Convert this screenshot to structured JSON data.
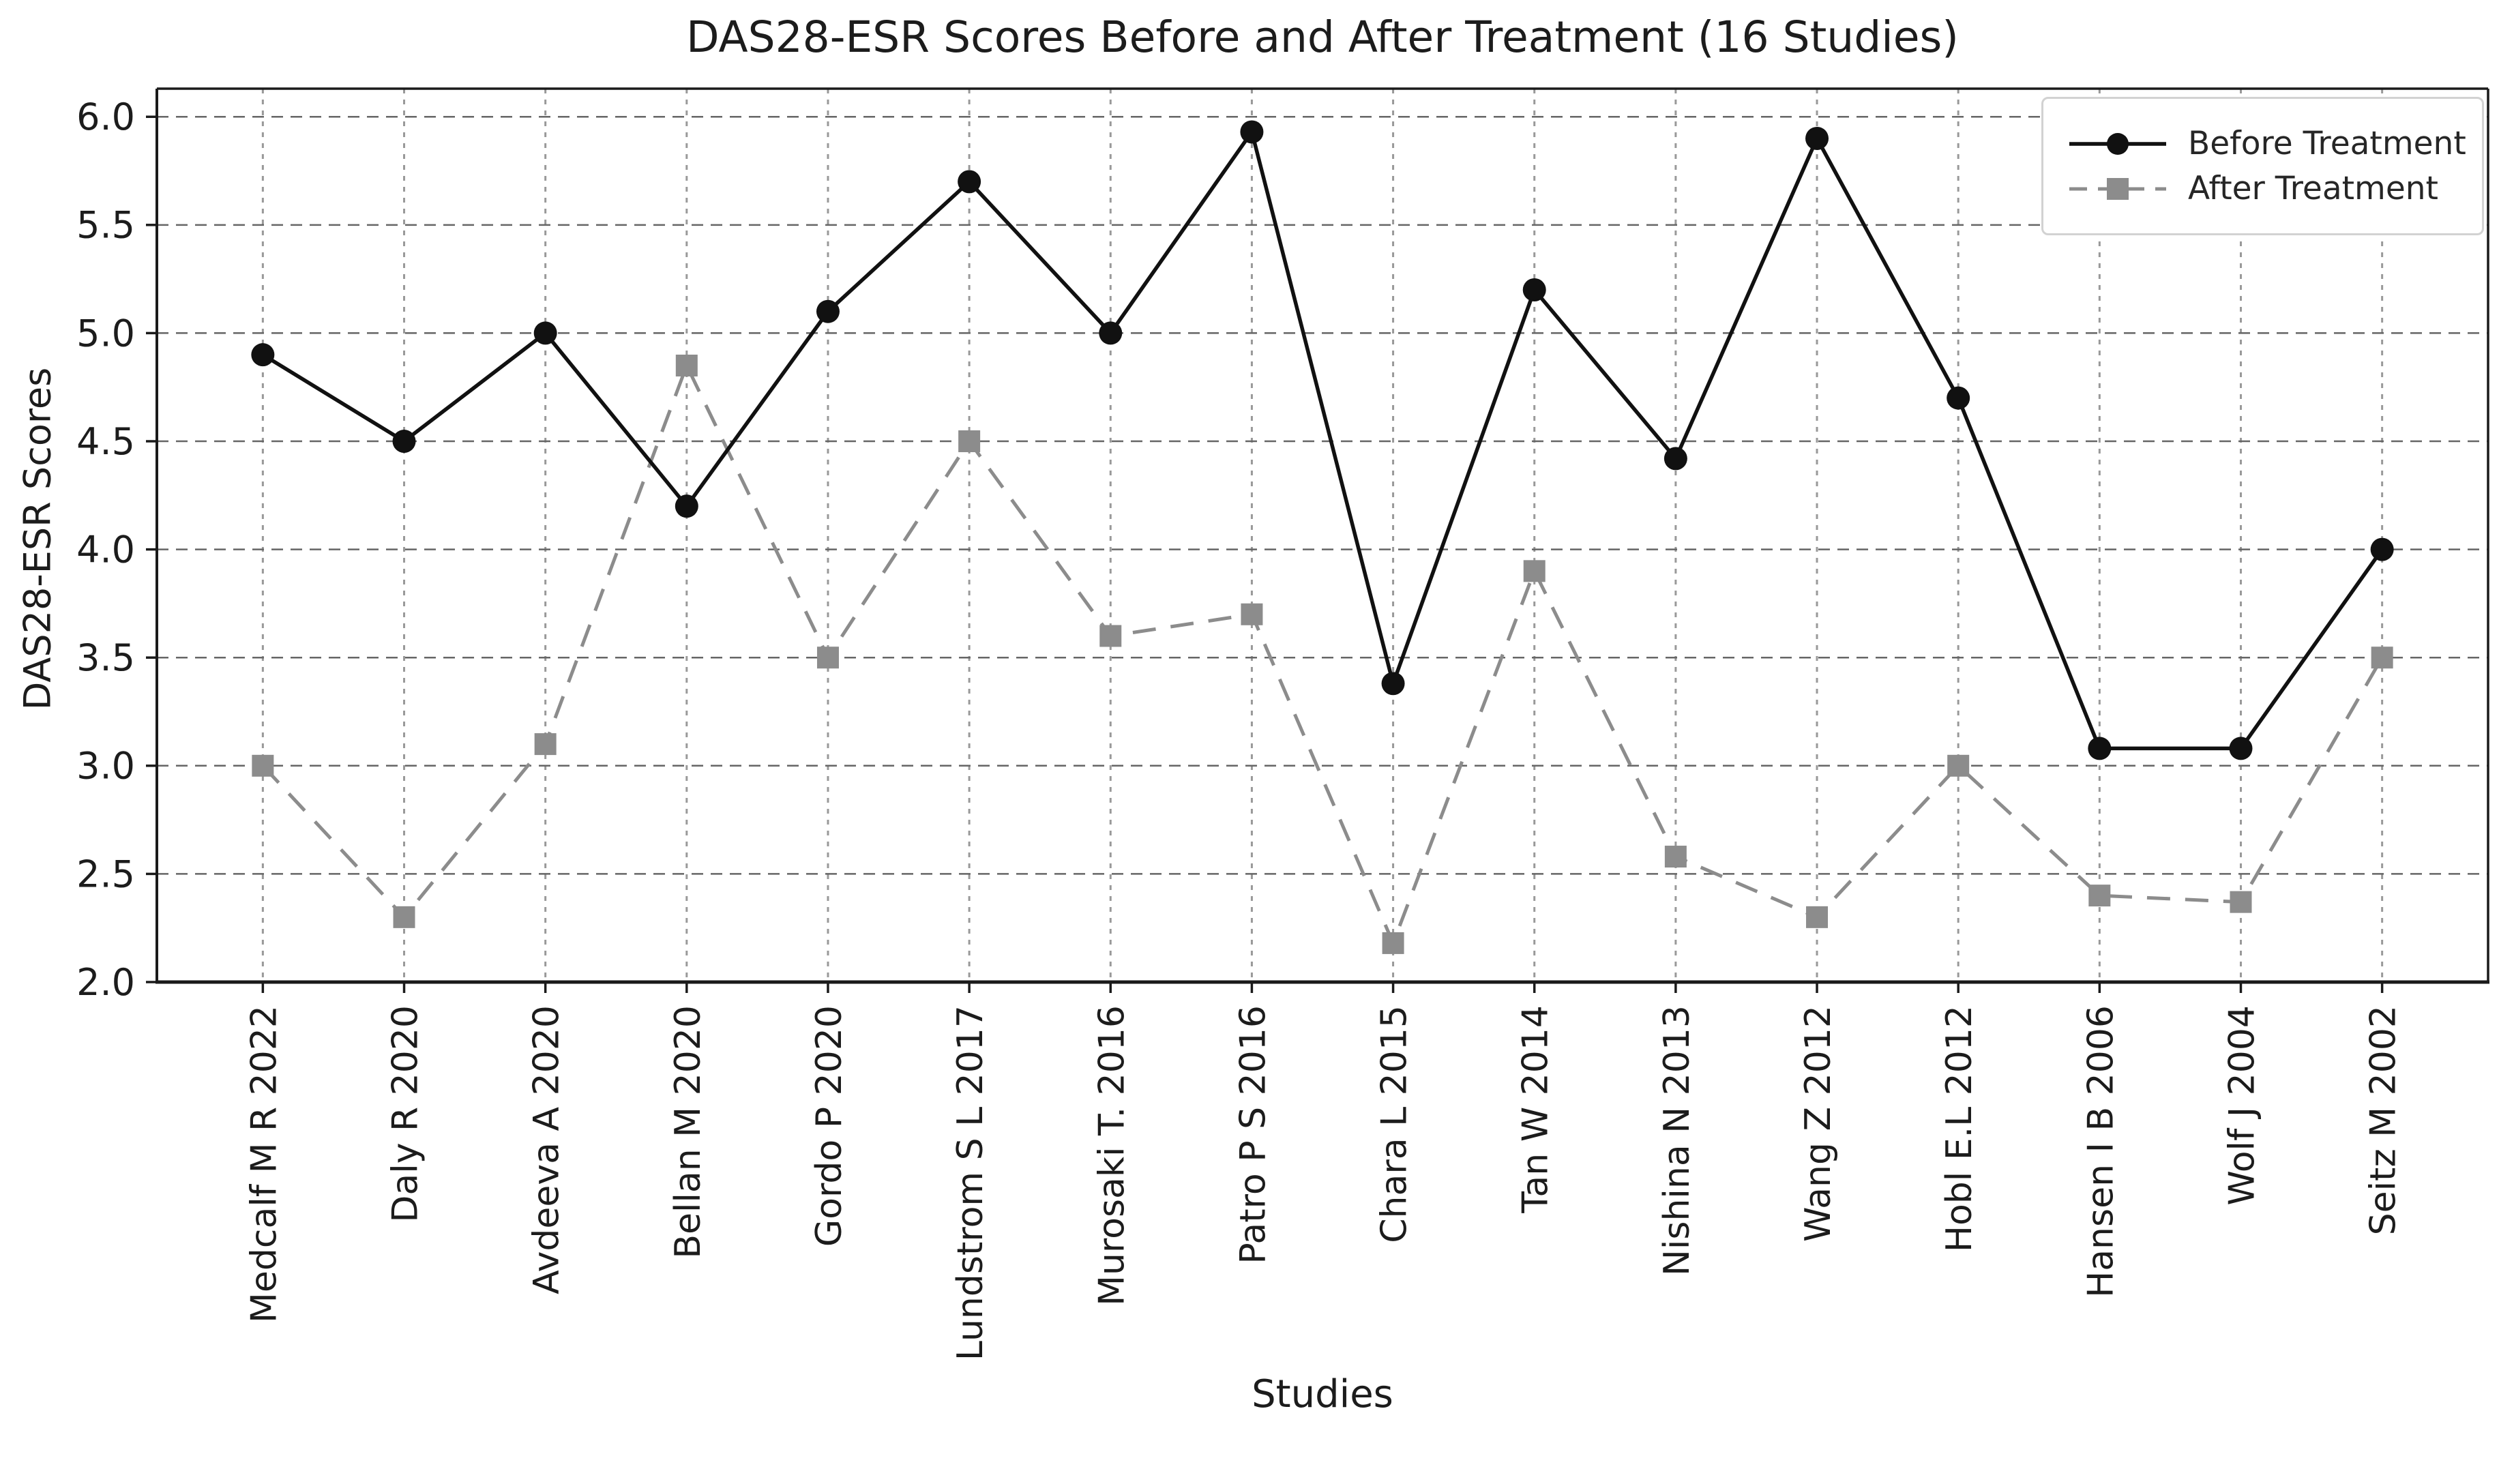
{
  "chart": {
    "title": "DAS28-ESR Scores Before and After Treatment (16 Studies)",
    "xlabel": "Studies",
    "ylabel": "DAS28-ESR Scores"
  },
  "legend": {
    "before_label": "Before Treatment",
    "after_label": "After Treatment"
  },
  "colors": {
    "before_series": "#111111",
    "after_series": "#8c8c8c",
    "grid_horizontal": "#666666",
    "grid_vertical": "#999999",
    "spine": "#1a1a1a",
    "legend_border": "#d2d2d2"
  },
  "chart_data": {
    "type": "line",
    "title": "DAS28-ESR Scores Before and After Treatment (16 Studies)",
    "xlabel": "Studies",
    "ylabel": "DAS28-ESR Scores",
    "categories": [
      "Medcalf M R 2022",
      "Daly R 2020",
      "Avdeeva A 2020",
      "Bellan M 2020",
      "Gordo P 2020",
      "Lundstrom S L 2017",
      "Murosaki T. 2016",
      "Patro P S 2016",
      "Chara L 2015",
      "Tan W 2014",
      "Nishina N 2013",
      "Wang Z 2012",
      "Hobl E.L 2012",
      "Hansen I B 2006",
      "Wolf J 2004",
      "Seitz M 2002"
    ],
    "series": [
      {
        "name": "Before Treatment",
        "color": "#111111",
        "linestyle": "solid",
        "marker": "circle",
        "values": [
          4.9,
          4.5,
          5.0,
          4.2,
          5.1,
          5.7,
          5.0,
          5.93,
          3.38,
          5.2,
          4.42,
          5.9,
          4.7,
          3.08,
          3.08,
          4.0
        ]
      },
      {
        "name": "After Treatment",
        "color": "#8c8c8c",
        "linestyle": "dashed",
        "marker": "square",
        "values": [
          3.0,
          2.3,
          3.1,
          4.85,
          3.5,
          4.5,
          3.6,
          3.7,
          2.18,
          3.9,
          2.58,
          2.3,
          3.0,
          2.4,
          2.37,
          3.5
        ]
      }
    ],
    "ylim": [
      2.0,
      6.13
    ],
    "y_ticks": [
      2.0,
      2.5,
      3.0,
      3.5,
      4.0,
      4.5,
      5.0,
      5.5,
      6.0
    ],
    "grid": true,
    "legend_position": "upper right"
  }
}
